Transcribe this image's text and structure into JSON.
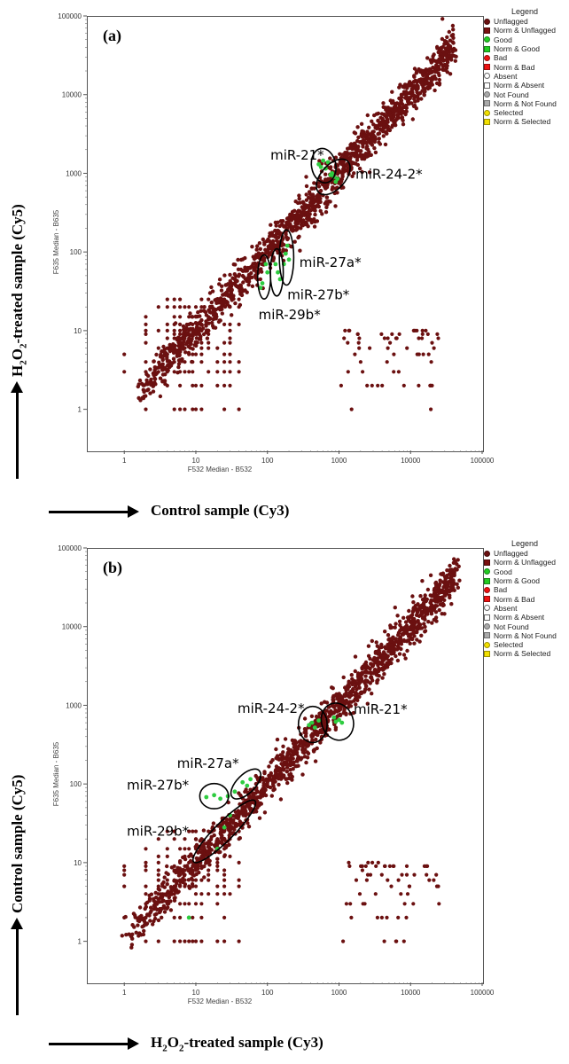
{
  "chart_data": [
    {
      "type": "scatter",
      "panel_label": "(a)",
      "xlabel": "F532 Median - B532",
      "ylabel": "F635 Median - B635",
      "x_title": "Control sample (Cy3)",
      "y_title_prefix": "H",
      "y_title_sub1": "2",
      "y_title_mid": "O",
      "y_title_sub2": "2",
      "y_title_suffix": "-treated sample (Cy5)",
      "x_scale": "log",
      "y_scale": "log",
      "xlim": [
        0.3,
        100000
      ],
      "ylim": [
        0.3,
        100000
      ],
      "x_ticks": [
        "1",
        "10",
        "100",
        "1000",
        "10000",
        "100000"
      ],
      "y_ticks": [
        "1",
        "10",
        "100",
        "1000",
        "10000",
        "100000"
      ],
      "legend": {
        "title": "Legend",
        "items": [
          {
            "label": "Unflagged",
            "shape": "circle",
            "color": "#6b1010"
          },
          {
            "label": "Norm & Unflagged",
            "shape": "square",
            "color": "#7a1010"
          },
          {
            "label": "Good",
            "shape": "circle",
            "color": "#22cc22"
          },
          {
            "label": "Norm & Good",
            "shape": "square",
            "color": "#22cc22"
          },
          {
            "label": "Bad",
            "shape": "circle",
            "color": "#ee1111"
          },
          {
            "label": "Norm & Bad",
            "shape": "square",
            "color": "#ee1111"
          },
          {
            "label": "Absent",
            "shape": "circle-outline",
            "color": "#ffffff"
          },
          {
            "label": "Norm & Absent",
            "shape": "square-outline",
            "color": "#ffffff"
          },
          {
            "label": "Not Found",
            "shape": "circle",
            "color": "#aaaaaa"
          },
          {
            "label": "Norm & Not Found",
            "shape": "square",
            "color": "#aaaaaa"
          },
          {
            "label": "Selected",
            "shape": "circle",
            "color": "#f2e000"
          },
          {
            "label": "Norm & Selected",
            "shape": "square",
            "color": "#f2e000"
          }
        ]
      },
      "point_color": "#6b1010",
      "highlight_color": "#2ecc40",
      "trend": {
        "x_start": 1.5,
        "x_end": 40000,
        "seed": 7
      },
      "annotations": [
        {
          "label": "miR-21*",
          "cx": 610,
          "cy": 1250,
          "rx_dec": 0.17,
          "ry_dec": 0.22,
          "angle": -10,
          "label_x": 110,
          "label_y": 1500,
          "anchor": "start"
        },
        {
          "label": "miR-24-2*",
          "cx": 830,
          "cy": 900,
          "rx_dec": 0.17,
          "ry_dec": 0.27,
          "angle": 42,
          "label_x": 1700,
          "label_y": 850,
          "anchor": "start"
        },
        {
          "label": "miR-27a*",
          "cx": 185,
          "cy": 85,
          "rx_dec": 0.1,
          "ry_dec": 0.35,
          "angle": 0,
          "label_x": 280,
          "label_y": 65,
          "anchor": "start"
        },
        {
          "label": "miR-27b*",
          "cx": 135,
          "cy": 55,
          "rx_dec": 0.09,
          "ry_dec": 0.3,
          "angle": 0,
          "label_x": 190,
          "label_y": 25,
          "anchor": "start"
        },
        {
          "label": "miR-29b*",
          "cx": 90,
          "cy": 48,
          "rx_dec": 0.09,
          "ry_dec": 0.28,
          "angle": 0,
          "label_x": 75,
          "label_y": 14,
          "anchor": "start"
        }
      ],
      "highlight_points": [
        [
          520,
          1300
        ],
        [
          600,
          1450
        ],
        [
          650,
          1150
        ],
        [
          700,
          1380
        ],
        [
          560,
          1200
        ],
        [
          800,
          1000
        ],
        [
          850,
          900
        ],
        [
          900,
          780
        ],
        [
          950,
          850
        ],
        [
          760,
          950
        ],
        [
          180,
          95
        ],
        [
          170,
          70
        ],
        [
          190,
          120
        ],
        [
          200,
          80
        ],
        [
          140,
          55
        ],
        [
          130,
          70
        ],
        [
          150,
          45
        ],
        [
          100,
          55
        ],
        [
          85,
          40
        ],
        [
          95,
          70
        ],
        [
          80,
          35
        ]
      ]
    },
    {
      "type": "scatter",
      "panel_label": "(b)",
      "xlabel": "F532 Median - B532",
      "ylabel": "F635 Median - B635",
      "x_title_prefix": "H",
      "x_title_sub1": "2",
      "x_title_mid": "O",
      "x_title_sub2": "2",
      "x_title_suffix": "-treated sample (Cy3)",
      "y_title": "Control sample (Cy5)",
      "x_scale": "log",
      "y_scale": "log",
      "xlim": [
        0.3,
        100000
      ],
      "ylim": [
        0.3,
        100000
      ],
      "x_ticks": [
        "1",
        "10",
        "100",
        "1000",
        "10000",
        "100000"
      ],
      "y_ticks": [
        "1",
        "10",
        "100",
        "1000",
        "10000",
        "100000"
      ],
      "legend": {
        "title": "Legend",
        "items": [
          {
            "label": "Unflagged",
            "shape": "circle",
            "color": "#6b1010"
          },
          {
            "label": "Norm & Unflagged",
            "shape": "square",
            "color": "#7a1010"
          },
          {
            "label": "Good",
            "shape": "circle",
            "color": "#22cc22"
          },
          {
            "label": "Norm & Good",
            "shape": "square",
            "color": "#22cc22"
          },
          {
            "label": "Bad",
            "shape": "circle",
            "color": "#ee1111"
          },
          {
            "label": "Norm & Bad",
            "shape": "square",
            "color": "#ee1111"
          },
          {
            "label": "Absent",
            "shape": "circle-outline",
            "color": "#ffffff"
          },
          {
            "label": "Norm & Absent",
            "shape": "square-outline",
            "color": "#ffffff"
          },
          {
            "label": "Not Found",
            "shape": "circle",
            "color": "#aaaaaa"
          },
          {
            "label": "Norm & Not Found",
            "shape": "square",
            "color": "#aaaaaa"
          },
          {
            "label": "Selected",
            "shape": "circle",
            "color": "#f2e000"
          },
          {
            "label": "Norm & Selected",
            "shape": "square",
            "color": "#f2e000"
          }
        ]
      },
      "point_color": "#6b1010",
      "highlight_color": "#2ecc40",
      "trend": {
        "x_start": 1,
        "x_end": 45000,
        "seed": 13
      },
      "annotations": [
        {
          "label": "miR-24-2*",
          "cx": 430,
          "cy": 570,
          "rx_dec": 0.2,
          "ry_dec": 0.23,
          "angle": 0,
          "label_x": 330,
          "label_y": 800,
          "anchor": "end"
        },
        {
          "label": "miR-21*",
          "cx": 950,
          "cy": 620,
          "rx_dec": 0.22,
          "ry_dec": 0.24,
          "angle": -20,
          "label_x": 1600,
          "label_y": 780,
          "anchor": "start"
        },
        {
          "label": "miR-27a*",
          "cx": 50,
          "cy": 100,
          "rx_dec": 0.13,
          "ry_dec": 0.24,
          "angle": 45,
          "label_x": 40,
          "label_y": 160,
          "anchor": "end"
        },
        {
          "label": "miR-27b*",
          "cx": 18,
          "cy": 70,
          "rx_dec": 0.2,
          "ry_dec": 0.16,
          "angle": 0,
          "label_x": 8,
          "label_y": 85,
          "anchor": "end"
        },
        {
          "label": "miR-29b*",
          "cx": 25,
          "cy": 25,
          "rx_dec": 0.13,
          "ry_dec": 0.55,
          "angle": 45,
          "label_x": 8,
          "label_y": 22,
          "anchor": "end"
        }
      ],
      "highlight_points": [
        [
          380,
          560
        ],
        [
          420,
          600
        ],
        [
          460,
          520
        ],
        [
          520,
          640
        ],
        [
          900,
          620
        ],
        [
          1000,
          650
        ],
        [
          1100,
          600
        ],
        [
          850,
          700
        ],
        [
          45,
          105
        ],
        [
          52,
          95
        ],
        [
          58,
          115
        ],
        [
          35,
          80
        ],
        [
          18,
          72
        ],
        [
          22,
          65
        ],
        [
          28,
          70
        ],
        [
          14,
          68
        ],
        [
          20,
          15
        ],
        [
          25,
          28
        ],
        [
          30,
          40
        ],
        [
          8,
          2
        ]
      ]
    }
  ]
}
